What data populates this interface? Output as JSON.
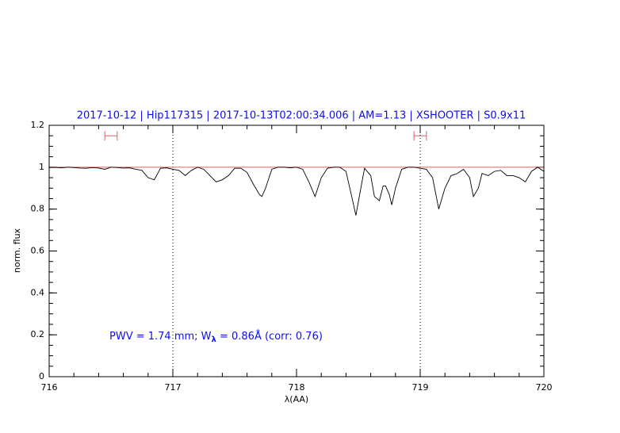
{
  "chart_data": {
    "type": "line",
    "title": "2017-10-12 | Hip117315 | 2017-10-13T02:00:34.006 | AM=1.13 | XSHOOTER | S0.9x11",
    "x_label": "λ(AA)",
    "y_label": "norm. flux",
    "annotation": [
      "PWV = 1.74 mm; W",
      "λ",
      " = 0.86Å (corr: 0.76)"
    ],
    "xlim": [
      716,
      720
    ],
    "ylim": [
      0,
      1.2
    ],
    "xticks": [
      716,
      717,
      718,
      719,
      720
    ],
    "yticks": [
      0,
      0.2,
      0.4,
      0.6,
      0.8,
      1,
      1.2
    ],
    "xminor": 0.2,
    "yminor": 0.05,
    "vlines": [
      717,
      719
    ],
    "hline": 1,
    "hline_color": "#e06060",
    "markers": [
      {
        "x": [
          716.45,
          716.55
        ],
        "y": 1.15
      },
      {
        "x": [
          718.95,
          719.05
        ],
        "y": 1.15
      }
    ],
    "marker_color": "#e06060",
    "series": [
      {
        "name": "flux",
        "color": "#000000",
        "x": [
          716.0,
          716.05,
          716.1,
          716.15,
          716.2,
          716.25,
          716.3,
          716.35,
          716.4,
          716.45,
          716.5,
          716.55,
          716.6,
          716.65,
          716.7,
          716.75,
          716.8,
          716.85,
          716.9,
          716.95,
          717.0,
          717.05,
          717.1,
          717.15,
          717.2,
          717.25,
          717.3,
          717.35,
          717.4,
          717.45,
          717.5,
          717.55,
          717.6,
          717.65,
          717.7,
          717.72,
          717.75,
          717.8,
          717.85,
          717.9,
          717.95,
          718.0,
          718.05,
          718.1,
          718.15,
          718.2,
          718.25,
          718.3,
          718.35,
          718.4,
          718.45,
          718.48,
          718.52,
          718.55,
          718.6,
          718.63,
          718.67,
          718.7,
          718.72,
          718.75,
          718.77,
          718.8,
          718.85,
          718.9,
          718.95,
          719.0,
          719.05,
          719.1,
          719.15,
          719.2,
          719.25,
          719.3,
          719.35,
          719.4,
          719.43,
          719.47,
          719.5,
          719.55,
          719.6,
          719.65,
          719.7,
          719.75,
          719.8,
          719.85,
          719.9,
          719.95,
          720.0
        ],
        "values": [
          0.998,
          0.999,
          0.997,
          1.0,
          0.998,
          0.996,
          0.995,
          0.998,
          0.996,
          0.99,
          1.0,
          0.998,
          0.996,
          0.997,
          0.99,
          0.985,
          0.95,
          0.94,
          0.995,
          0.997,
          0.99,
          0.985,
          0.96,
          0.985,
          1.0,
          0.99,
          0.96,
          0.93,
          0.94,
          0.96,
          0.995,
          0.995,
          0.975,
          0.92,
          0.87,
          0.86,
          0.9,
          0.99,
          1.0,
          1.0,
          0.997,
          1.0,
          0.99,
          0.93,
          0.86,
          0.95,
          0.995,
          1.0,
          1.0,
          0.98,
          0.85,
          0.77,
          0.9,
          0.995,
          0.96,
          0.86,
          0.84,
          0.91,
          0.91,
          0.87,
          0.82,
          0.9,
          0.99,
          1.0,
          1.0,
          0.995,
          0.99,
          0.95,
          0.8,
          0.9,
          0.96,
          0.97,
          0.99,
          0.95,
          0.86,
          0.9,
          0.97,
          0.96,
          0.98,
          0.985,
          0.96,
          0.96,
          0.95,
          0.93,
          0.98,
          1.0,
          0.98
        ]
      }
    ]
  }
}
